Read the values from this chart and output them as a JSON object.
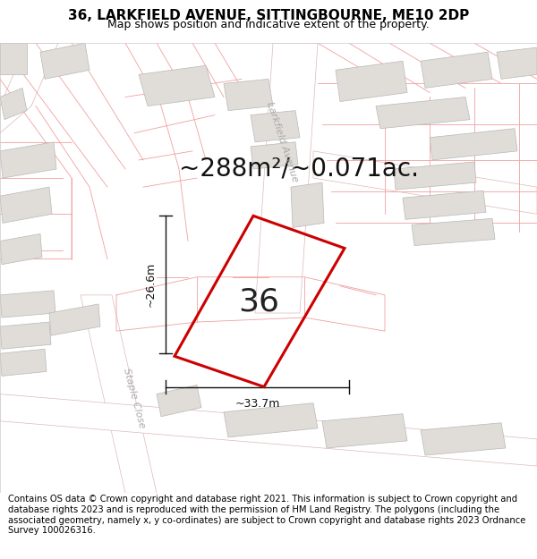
{
  "title": "36, LARKFIELD AVENUE, SITTINGBOURNE, ME10 2DP",
  "subtitle": "Map shows position and indicative extent of the property.",
  "area_text": "~288m²/~0.071ac.",
  "width_label": "~33.7m",
  "height_label": "~26.6m",
  "house_number": "36",
  "footer_text": "Contains OS data © Crown copyright and database right 2021. This information is subject to Crown copyright and database rights 2023 and is reproduced with the permission of HM Land Registry. The polygons (including the associated geometry, namely x, y co-ordinates) are subject to Crown copyright and database rights 2023 Ordnance Survey 100026316.",
  "map_bg": "#ffffff",
  "property_edge": "#cc0000",
  "block_fill": "#e0ddd8",
  "block_edge": "#b8b8b8",
  "parcel_line_color": "#f0a0a0",
  "road_fill": "#ffffff",
  "road_edge": "#e8c0c0",
  "title_fontsize": 11,
  "subtitle_fontsize": 9,
  "area_fontsize": 20,
  "number_fontsize": 26,
  "label_fontsize": 9,
  "footer_fontsize": 7.2,
  "street_label_color": "#aaaaaa",
  "street_label_fontsize": 8
}
